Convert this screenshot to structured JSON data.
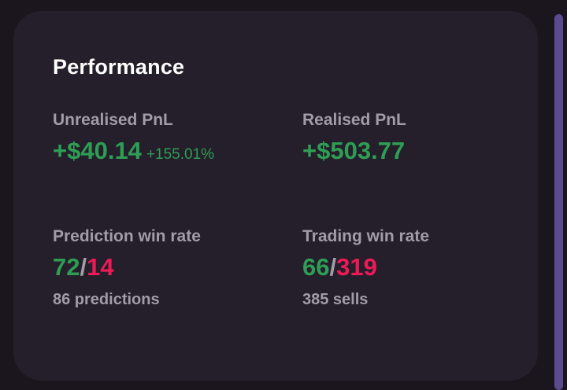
{
  "card": {
    "title": "Performance"
  },
  "unrealised": {
    "label": "Unrealised PnL",
    "value": "+$40.14",
    "percent": "+155.01%"
  },
  "realised": {
    "label": "Realised PnL",
    "value": "+$503.77"
  },
  "prediction": {
    "label": "Prediction win rate",
    "wins": "72",
    "separator": "/",
    "losses": "14",
    "sub": "86 predictions"
  },
  "trading": {
    "label": "Trading win rate",
    "wins": "66",
    "separator": "/",
    "losses": "319",
    "sub": "385 sells"
  },
  "colors": {
    "background": "#1b161e",
    "card": "#241f2a",
    "positive": "#2f9e55",
    "negative": "#ee1a55",
    "muted": "#a39ca8",
    "scrollbar": "#5b4a8e"
  }
}
